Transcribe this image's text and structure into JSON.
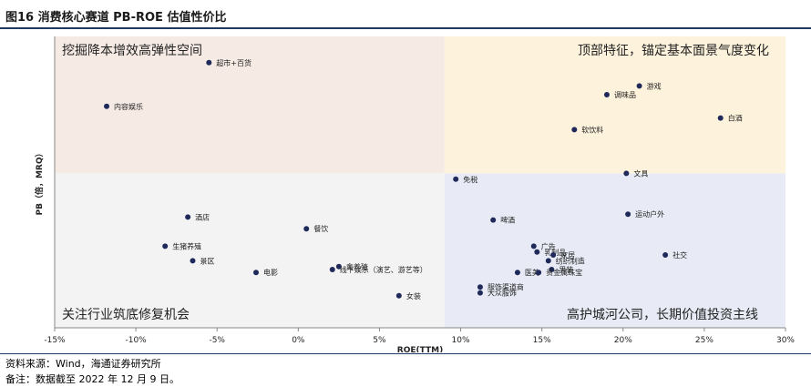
{
  "figure": {
    "title": "图16 消费核心赛道 PB-ROE 估值性价比",
    "source": "资料来源：Wind，海通证券研究所",
    "note": "备注：数据截至 2022 年 12 月 9 日。"
  },
  "colors": {
    "title_rule": "#1f3864",
    "point": "#1f2a5a",
    "q_top_left": "#f6ebe4",
    "q_top_right": "#fdf2dc",
    "q_bottom_left": "#f3f3f3",
    "q_bottom_right": "#e8ebf5"
  },
  "chart_data": {
    "type": "scatter",
    "xlabel": "ROE(TTM)",
    "ylabel": "PB（倍，MRQ）",
    "xlim": [
      -15,
      30
    ],
    "x_ticks": [
      -15,
      -10,
      -5,
      0,
      5,
      10,
      15,
      20,
      25,
      30
    ],
    "x_tick_labels": [
      "-15%",
      "-10%",
      "-5%",
      "0%",
      "5%",
      "10%",
      "15%",
      "20%",
      "25%",
      "30%"
    ],
    "ylim": [
      0,
      10
    ],
    "quadrant_split": {
      "x": 9,
      "y": 5.3
    },
    "y_ticks_shown": false,
    "grid": false,
    "quadrant_labels": {
      "top_left": "挖掘降本增效高弹性空间",
      "top_right": "顶部特征，锚定基本面景气度变化",
      "bottom_left": "关注行业筑底修复机会",
      "bottom_right": "高护城河公司，长期价值投资主线"
    },
    "points": [
      {
        "label": "超市+百货",
        "x": -5.5,
        "y": 9.1
      },
      {
        "label": "内容娱乐",
        "x": -11.8,
        "y": 7.6
      },
      {
        "label": "游戏",
        "x": 21.0,
        "y": 8.3
      },
      {
        "label": "调味品",
        "x": 19.0,
        "y": 8.0
      },
      {
        "label": "白酒",
        "x": 26.0,
        "y": 7.2
      },
      {
        "label": "软饮料",
        "x": 17.0,
        "y": 6.8
      },
      {
        "label": "免税",
        "x": 9.7,
        "y": 5.1
      },
      {
        "label": "文具",
        "x": 20.2,
        "y": 5.3
      },
      {
        "label": "酒店",
        "x": -6.8,
        "y": 3.8
      },
      {
        "label": "餐饮",
        "x": 0.5,
        "y": 3.4
      },
      {
        "label": "啤酒",
        "x": 12.0,
        "y": 3.7
      },
      {
        "label": "运动户外",
        "x": 20.3,
        "y": 3.9
      },
      {
        "label": "生猪养殖",
        "x": -8.2,
        "y": 2.8
      },
      {
        "label": "景区",
        "x": -6.5,
        "y": 2.3
      },
      {
        "label": "电影",
        "x": -2.6,
        "y": 1.9
      },
      {
        "label": "禽养殖",
        "x": 2.5,
        "y": 2.1
      },
      {
        "label": "线下娱乐（演艺、游艺等）",
        "x": 2.1,
        "y": 2.0
      },
      {
        "label": "女装",
        "x": 6.2,
        "y": 1.1
      },
      {
        "label": "广告",
        "x": 14.5,
        "y": 2.8
      },
      {
        "label": "乳制品",
        "x": 14.7,
        "y": 2.6
      },
      {
        "label": "家居",
        "x": 15.7,
        "y": 2.5
      },
      {
        "label": "纺织制造",
        "x": 15.4,
        "y": 2.3
      },
      {
        "label": "医美",
        "x": 13.5,
        "y": 1.9
      },
      {
        "label": "男装",
        "x": 15.6,
        "y": 2.0
      },
      {
        "label": "社交",
        "x": 22.6,
        "y": 2.5
      },
      {
        "label": "贵金属珠宝",
        "x": 14.8,
        "y": 1.9
      },
      {
        "label": "服饰渠道商",
        "x": 11.2,
        "y": 1.4
      },
      {
        "label": "大众服饰",
        "x": 11.2,
        "y": 1.2
      }
    ]
  }
}
